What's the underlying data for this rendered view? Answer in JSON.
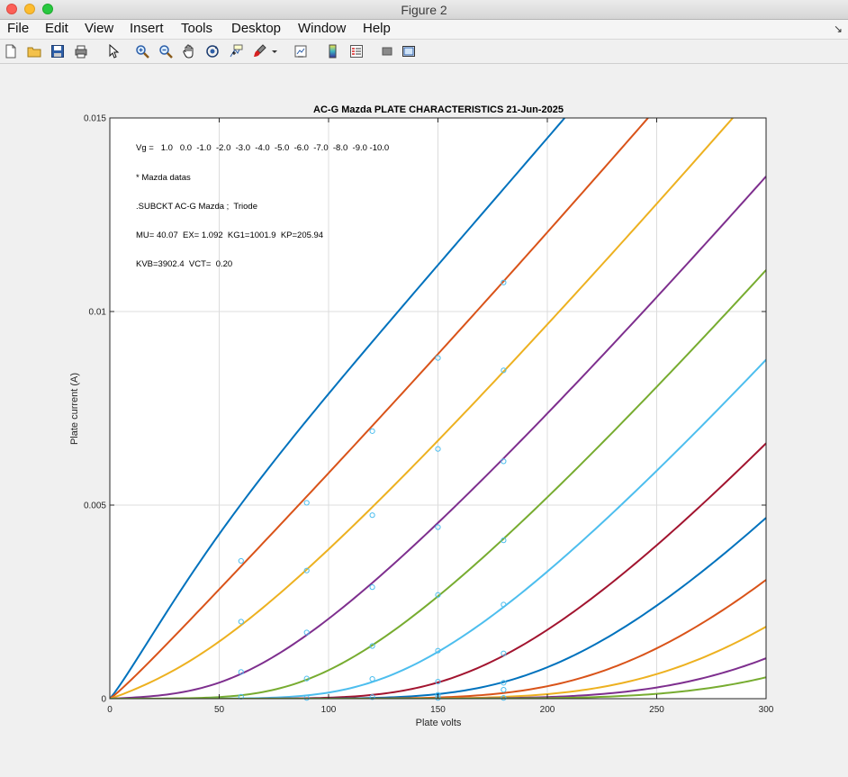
{
  "window": {
    "title": "Figure 2"
  },
  "menu": [
    "File",
    "Edit",
    "View",
    "Insert",
    "Tools",
    "Desktop",
    "Window",
    "Help"
  ],
  "toolbar_icons": [
    "new-figure-icon",
    "open-file-icon",
    "save-icon",
    "print-icon",
    "pointer-icon",
    "zoom-in-icon",
    "zoom-out-icon",
    "pan-icon",
    "rotate-icon",
    "data-cursor-icon",
    "brush-icon",
    "brush-dropdown-icon",
    "link-plot-icon",
    "colorbar-icon",
    "legend-icon",
    "hide-plot-tools-icon",
    "show-plot-tools-icon"
  ],
  "chart_data": {
    "type": "line",
    "title": "AC-G Mazda PLATE CHARACTERISTICS  21-Jun-2025",
    "xlabel": "Plate volts",
    "ylabel": "Plate current (A)",
    "xlim": [
      0,
      300
    ],
    "ylim": [
      0,
      0.015
    ],
    "xticks": [
      "0",
      "50",
      "100",
      "150",
      "200",
      "250",
      "300"
    ],
    "yticks": [
      "0",
      "0.005",
      "0.01",
      "0.015"
    ],
    "grid": true,
    "annotations": [
      "Vg =   1.0   0.0  -1.0  -2.0  -3.0  -4.0  -5.0  -6.0  -7.0  -8.0  -9.0 -10.0",
      "* Mazda datas",
      ".SUBCKT AC-G Mazda ;  Triode",
      "MU= 40.07  EX= 1.092  KG1=1001.9  KP=205.94",
      "KVB=3902.4  VCT=  0.20"
    ],
    "model": {
      "MU": 40.07,
      "EX": 1.092,
      "KG1": 1001.9,
      "KP": 205.94,
      "KVB": 3902.4,
      "VCT": 0.2
    },
    "series_vg": [
      1.0,
      0.0,
      -1.0,
      -2.0,
      -3.0,
      -4.0,
      -5.0,
      -6.0,
      -7.0,
      -8.0,
      -9.0,
      -10.0
    ],
    "series_colors": [
      "#0072bd",
      "#d95319",
      "#edb120",
      "#7e2f8e",
      "#77ac30",
      "#4dbeee",
      "#a2142f",
      "#0072bd",
      "#d95319",
      "#edb120",
      "#7e2f8e",
      "#77ac30"
    ],
    "measured_points": [
      {
        "x": 60,
        "y": 0.00356
      },
      {
        "x": 60,
        "y": 0.00199
      },
      {
        "x": 60,
        "y": 0.00069
      },
      {
        "x": 60,
        "y": 5e-05
      },
      {
        "x": 90,
        "y": 0.00506
      },
      {
        "x": 90,
        "y": 0.00331
      },
      {
        "x": 90,
        "y": 0.00171
      },
      {
        "x": 90,
        "y": 0.00052
      },
      {
        "x": 90,
        "y": 2e-05
      },
      {
        "x": 120,
        "y": 0.00691
      },
      {
        "x": 120,
        "y": 0.00474
      },
      {
        "x": 120,
        "y": 0.00288
      },
      {
        "x": 120,
        "y": 0.00136
      },
      {
        "x": 120,
        "y": 0.00051
      },
      {
        "x": 120,
        "y": 4e-05
      },
      {
        "x": 150,
        "y": 0.0088
      },
      {
        "x": 150,
        "y": 0.00645
      },
      {
        "x": 150,
        "y": 0.00443
      },
      {
        "x": 150,
        "y": 0.00268
      },
      {
        "x": 150,
        "y": 0.00124
      },
      {
        "x": 150,
        "y": 0.00044
      },
      {
        "x": 150,
        "y": 0.0001
      },
      {
        "x": 150,
        "y": 2e-05
      },
      {
        "x": 180,
        "y": 0.01075
      },
      {
        "x": 180,
        "y": 0.00848
      },
      {
        "x": 180,
        "y": 0.00613
      },
      {
        "x": 180,
        "y": 0.00409
      },
      {
        "x": 180,
        "y": 0.00243
      },
      {
        "x": 180,
        "y": 0.00117
      },
      {
        "x": 180,
        "y": 0.00041
      },
      {
        "x": 180,
        "y": 0.00023
      },
      {
        "x": 180,
        "y": 2e-05
      }
    ],
    "marker_color": "#4dbeee"
  }
}
